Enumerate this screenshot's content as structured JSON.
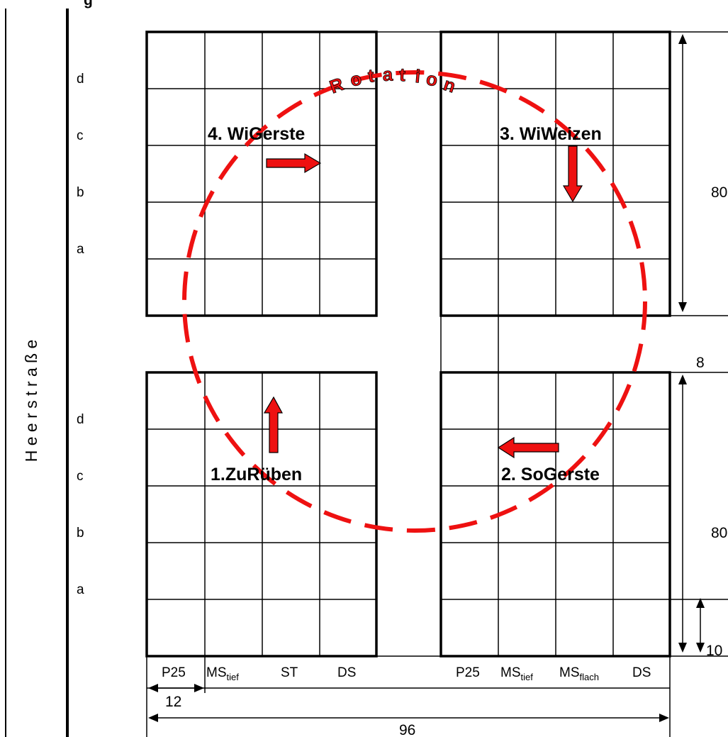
{
  "street_label": "H e e r s t r a ß e",
  "top_title_fragment": "g",
  "rows_upper": [
    "d",
    "c",
    "b",
    "a"
  ],
  "rows_lower": [
    "d",
    "c",
    "b",
    "a"
  ],
  "plots": {
    "p4": "4. WiGerste",
    "p3": "3. WiWeizen",
    "p1": "1.ZuRüben",
    "p2": "2. SoGerste"
  },
  "rotation_label": [
    "R",
    "o",
    "t",
    "a",
    "t",
    "i",
    "o",
    "n"
  ],
  "columns_left": [
    {
      "main": "P25",
      "sub": ""
    },
    {
      "main": "MS",
      "sub": "tief"
    },
    {
      "main": "ST",
      "sub": ""
    },
    {
      "main": "DS",
      "sub": ""
    }
  ],
  "columns_right": [
    {
      "main": "P25",
      "sub": ""
    },
    {
      "main": "MS",
      "sub": "tief"
    },
    {
      "main": "MS",
      "sub": "flach"
    },
    {
      "main": "DS",
      "sub": ""
    }
  ],
  "dimensions": {
    "upper_height": "80",
    "gap": "8",
    "lower_height": "80",
    "row_height": "10",
    "column_width": "12",
    "total_width": "96"
  },
  "colors": {
    "accent": "#ee1111",
    "line": "#000000",
    "background": "#ffffff"
  }
}
